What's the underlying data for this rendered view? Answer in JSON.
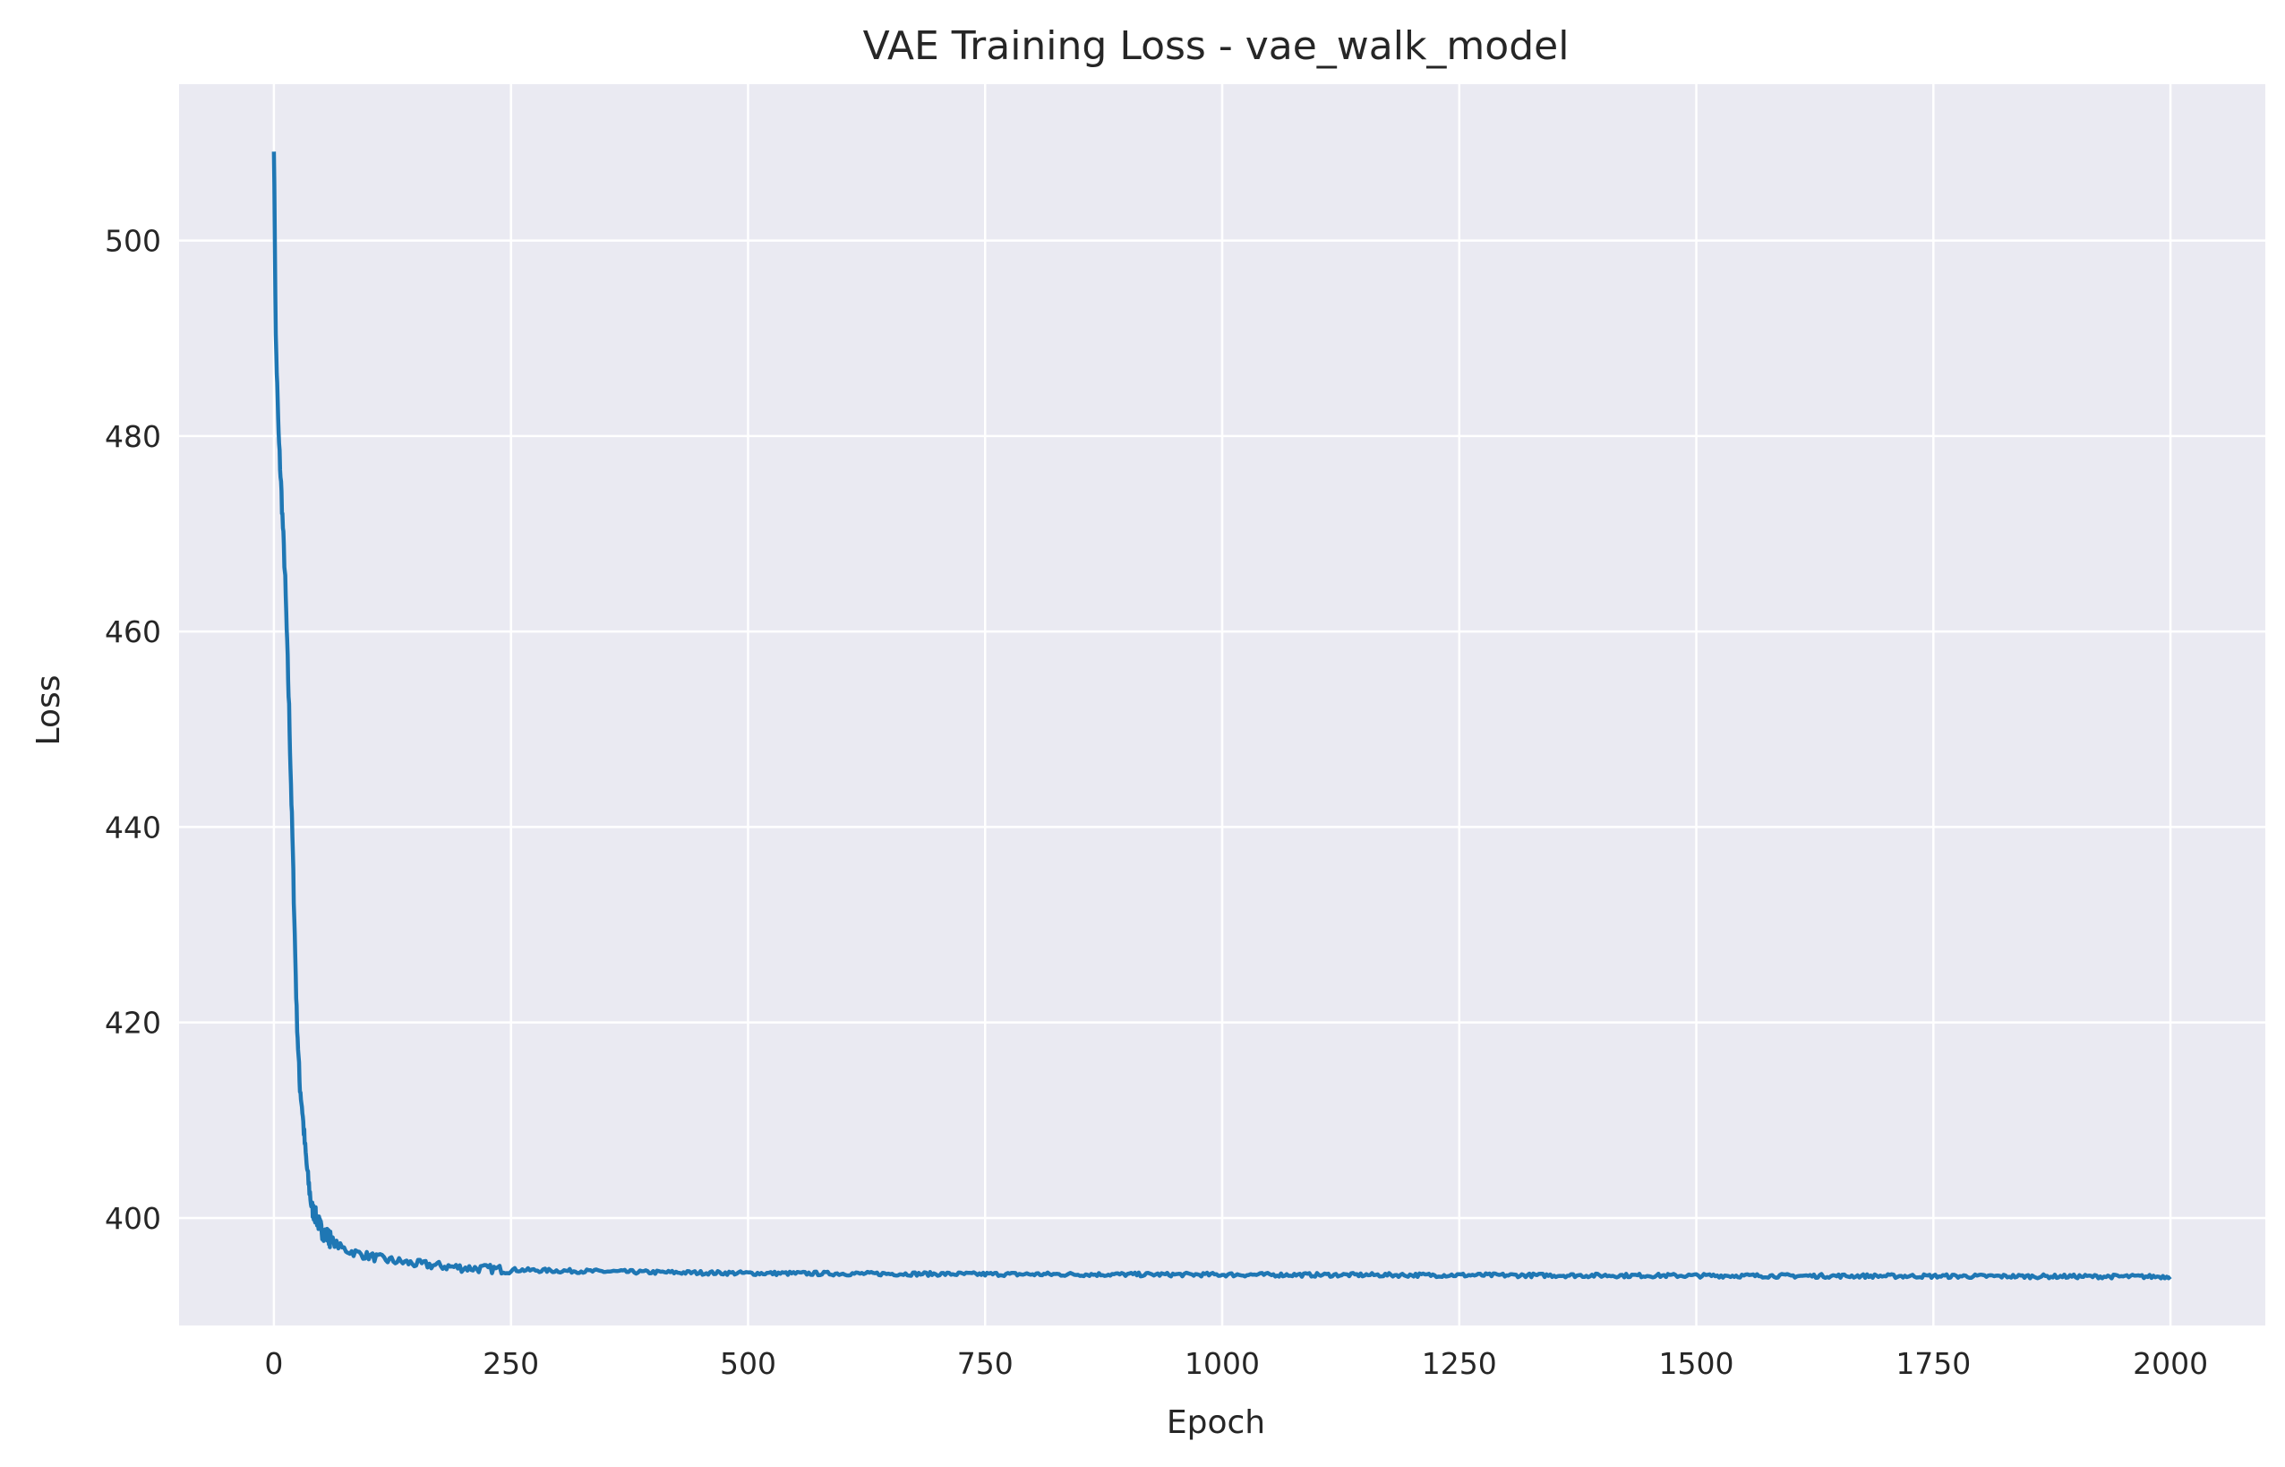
{
  "chart_data": {
    "type": "line",
    "title": "VAE Training Loss - vae_walk_model",
    "xlabel": "Epoch",
    "ylabel": "Loss",
    "xlim": [
      -100,
      2100
    ],
    "ylim": [
      389,
      516
    ],
    "x_ticks": [
      0,
      250,
      500,
      750,
      1000,
      1250,
      1500,
      1750,
      2000
    ],
    "y_ticks": [
      400,
      420,
      440,
      460,
      480,
      500
    ],
    "grid": true,
    "legend": "none",
    "colors": {
      "line": "#1f77b4",
      "background": "#eaeaf2",
      "grid": "#ffffff"
    },
    "series": [
      {
        "x": [
          0,
          2,
          5,
          8,
          12,
          16,
          20,
          24,
          27,
          30,
          33,
          36,
          40,
          45,
          50,
          60,
          70,
          80,
          100,
          120,
          150,
          200,
          250,
          300,
          400,
          500,
          750,
          1000,
          1250,
          1500,
          1750,
          2000
        ],
        "y": [
          510,
          490,
          480,
          474,
          465,
          452,
          437,
          421,
          414,
          411,
          407,
          404,
          401,
          400,
          398.8,
          397.8,
          397,
          396.6,
          396.1,
          395.7,
          395.3,
          394.9,
          394.7,
          394.6,
          394.45,
          394.35,
          394.25,
          394.2,
          394.15,
          394.1,
          394.05,
          394.0
        ]
      }
    ]
  }
}
